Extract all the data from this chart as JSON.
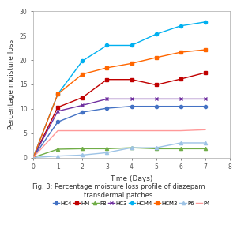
{
  "title": "Fig. 3: Percentage moisture loss profile of diazepam\ntransdermal patches",
  "xlabel": "Time (Days)",
  "ylabel": "Percentage moisture loss",
  "xlim": [
    0,
    8
  ],
  "ylim": [
    0,
    30
  ],
  "xticks": [
    0,
    1,
    2,
    3,
    4,
    5,
    6,
    7,
    8
  ],
  "yticks": [
    0,
    5,
    10,
    15,
    20,
    25,
    30
  ],
  "series": [
    {
      "label": "HC4",
      "color": "#4472C4",
      "marker": "o",
      "markersize": 3,
      "linewidth": 1.0,
      "x": [
        0,
        1,
        2,
        3,
        4,
        5,
        6,
        7
      ],
      "y": [
        0,
        7.3,
        9.3,
        10.1,
        10.5,
        10.5,
        10.5,
        10.5
      ]
    },
    {
      "label": "HM",
      "color": "#C00000",
      "marker": "s",
      "markersize": 3,
      "linewidth": 1.0,
      "x": [
        0,
        1,
        2,
        3,
        4,
        5,
        6,
        7
      ],
      "y": [
        0,
        10.3,
        12.3,
        16.0,
        16.0,
        14.9,
        16.1,
        17.4
      ]
    },
    {
      "label": "P8",
      "color": "#70AD47",
      "marker": "^",
      "markersize": 3,
      "linewidth": 1.0,
      "x": [
        0,
        1,
        2,
        3,
        4,
        5,
        6,
        7
      ],
      "y": [
        0,
        1.7,
        1.8,
        1.8,
        2.0,
        1.8,
        1.8,
        1.8
      ]
    },
    {
      "label": "HC3",
      "color": "#7030A0",
      "marker": "x",
      "markersize": 3.5,
      "linewidth": 1.0,
      "x": [
        0,
        1,
        2,
        3,
        4,
        5,
        6,
        7
      ],
      "y": [
        0,
        9.5,
        10.7,
        12.0,
        12.0,
        12.0,
        12.0,
        12.0
      ]
    },
    {
      "label": "HCM4",
      "color": "#00B0F0",
      "marker": "o",
      "markersize": 3,
      "linewidth": 1.0,
      "x": [
        0,
        1,
        2,
        3,
        4,
        5,
        6,
        7
      ],
      "y": [
        0,
        13.0,
        19.8,
        23.0,
        23.0,
        25.3,
        27.0,
        27.8
      ]
    },
    {
      "label": "HCM3",
      "color": "#FF6600",
      "marker": "s",
      "markersize": 3,
      "linewidth": 1.0,
      "x": [
        0,
        1,
        2,
        3,
        4,
        5,
        6,
        7
      ],
      "y": [
        0,
        13.0,
        17.1,
        18.4,
        19.3,
        20.5,
        21.6,
        22.1
      ]
    },
    {
      "label": "P6",
      "color": "#9DC3E6",
      "marker": "^",
      "markersize": 3,
      "linewidth": 1.0,
      "x": [
        0,
        1,
        2,
        3,
        4,
        5,
        6,
        7
      ],
      "y": [
        0,
        0.3,
        0.5,
        1.0,
        2.0,
        2.0,
        3.0,
        3.0
      ]
    },
    {
      "label": "P4",
      "color": "#FF9999",
      "marker": "none",
      "markersize": 0,
      "linewidth": 1.0,
      "x": [
        0,
        1,
        2,
        3,
        4,
        5,
        6,
        7
      ],
      "y": [
        0,
        5.5,
        5.5,
        5.5,
        5.5,
        5.5,
        5.5,
        5.7
      ]
    }
  ],
  "background_color": "#FFFFFF",
  "title_fontsize": 6.0,
  "axis_label_fontsize": 6.5,
  "tick_fontsize": 5.5,
  "legend_fontsize": 5.0
}
